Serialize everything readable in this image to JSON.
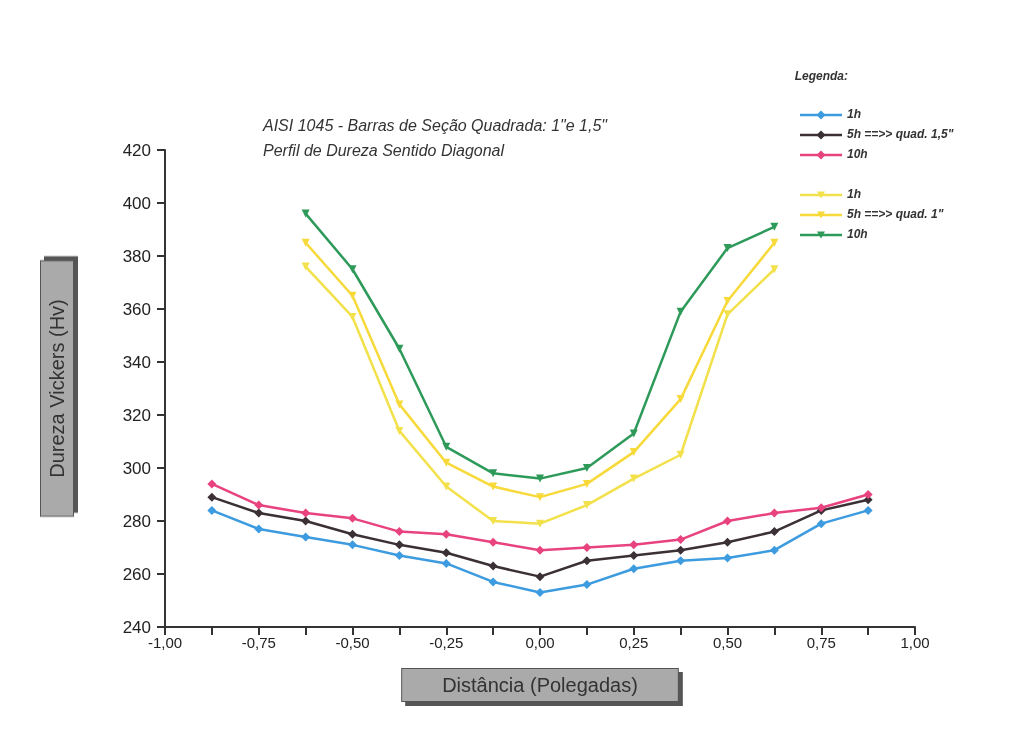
{
  "chart_data": {
    "type": "line",
    "title": "AISI 1045 - Barras de Seção Quadrada: 1\"e 1,5\"",
    "subtitle": "Perfil de Dureza Sentido Diagonal",
    "xlabel": "Distância (Polegadas)",
    "ylabel": "Dureza Vickers (Hv)",
    "legend_title": "Legenda:",
    "legend": "top right",
    "grid": false,
    "xlim": [
      -1,
      1
    ],
    "xticks": [
      {
        "value": -1,
        "label": "-1,00"
      },
      {
        "value": -0.875,
        "label": null
      },
      {
        "value": -0.75,
        "label": "-0,75"
      },
      {
        "value": -0.625,
        "label": null
      },
      {
        "value": -0.5,
        "label": "-0,50"
      },
      {
        "value": -0.375,
        "label": null
      },
      {
        "value": -0.25,
        "label": "-0,25"
      },
      {
        "value": -0.125,
        "label": null
      },
      {
        "value": 0,
        "label": "0,00"
      },
      {
        "value": 0.125,
        "label": null
      },
      {
        "value": 0.25,
        "label": "0,25"
      },
      {
        "value": 0.375,
        "label": null
      },
      {
        "value": 0.5,
        "label": "0,50"
      },
      {
        "value": 0.625,
        "label": null
      },
      {
        "value": 0.75,
        "label": "0,75"
      },
      {
        "value": 0.875,
        "label": null
      },
      {
        "value": 1,
        "label": "1,00"
      }
    ],
    "ylim": [
      240,
      420
    ],
    "yticks": [
      240,
      260,
      280,
      300,
      320,
      340,
      360,
      380,
      400,
      420
    ],
    "series": [
      {
        "name": "1h",
        "color": "#3d9be0",
        "marker": "diamond",
        "x": [
          -0.875,
          -0.75,
          -0.625,
          -0.5,
          -0.375,
          -0.25,
          -0.125,
          0,
          0.125,
          0.25,
          0.375,
          0.5,
          0.625,
          0.75,
          0.875
        ],
        "values": [
          284,
          277,
          274,
          271,
          267,
          264,
          257,
          253,
          256,
          262,
          265,
          266,
          269,
          279,
          284
        ]
      },
      {
        "name": "5h ==>> quad. 1,5\"",
        "color": "#3a3035",
        "marker": "diamond",
        "x": [
          -0.875,
          -0.75,
          -0.625,
          -0.5,
          -0.375,
          -0.25,
          -0.125,
          0,
          0.125,
          0.25,
          0.375,
          0.5,
          0.625,
          0.75,
          0.875
        ],
        "values": [
          289,
          283,
          280,
          275,
          271,
          268,
          263,
          259,
          265,
          267,
          269,
          272,
          276,
          284,
          288
        ]
      },
      {
        "name": "10h",
        "color": "#e8437f",
        "marker": "diamond",
        "x": [
          -0.875,
          -0.75,
          -0.625,
          -0.5,
          -0.375,
          -0.25,
          -0.125,
          0,
          0.125,
          0.25,
          0.375,
          0.5,
          0.625,
          0.75,
          0.875
        ],
        "values": [
          294,
          286,
          283,
          281,
          276,
          275,
          272,
          269,
          270,
          271,
          273,
          280,
          283,
          285,
          290
        ]
      },
      {
        "name": "1h",
        "color": "#f2e14a",
        "marker": "triangle",
        "x": [
          -0.625,
          -0.5,
          -0.375,
          -0.25,
          -0.125,
          0,
          0.125,
          0.25,
          0.375,
          0.5,
          0.625
        ],
        "values": [
          376,
          357,
          314,
          293,
          280,
          279,
          286,
          296,
          305,
          358,
          375
        ]
      },
      {
        "name": "5h ==>> quad. 1\"",
        "color": "#f7d93a",
        "marker": "triangle",
        "x": [
          -0.625,
          -0.5,
          -0.375,
          -0.25,
          -0.125,
          0,
          0.125,
          0.25,
          0.375,
          0.5,
          0.625
        ],
        "values": [
          385,
          365,
          324,
          302,
          293,
          289,
          294,
          306,
          326,
          363,
          385
        ]
      },
      {
        "name": "10h",
        "color": "#2e9a5a",
        "marker": "triangle",
        "x": [
          -0.625,
          -0.5,
          -0.375,
          -0.25,
          -0.125,
          0,
          0.125,
          0.25,
          0.375,
          0.5,
          0.625
        ],
        "values": [
          396,
          375,
          345,
          308,
          298,
          296,
          300,
          313,
          359,
          383,
          391
        ]
      }
    ]
  }
}
